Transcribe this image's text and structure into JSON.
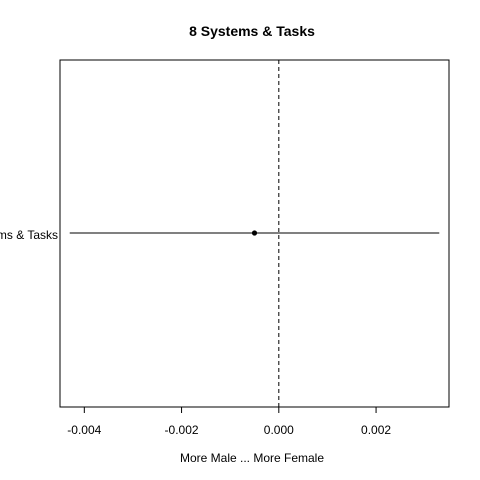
{
  "chart_data": {
    "type": "scatter",
    "title": "8 Systems & Tasks",
    "xlabel": "More Male ... More Female",
    "ylabel": "",
    "xlim": [
      -0.0045,
      0.0035
    ],
    "x_ticks": [
      -0.004,
      -0.002,
      0.0,
      0.002
    ],
    "x_tick_labels": [
      "-0.004",
      "-0.002",
      "0.000",
      "0.002"
    ],
    "reference_line": {
      "x": 0.0,
      "style": "dashed"
    },
    "categories": [
      "Systems & Tasks"
    ],
    "visible_category_label": "ms & Tasks",
    "points": [
      {
        "category": "Systems & Tasks",
        "estimate": -0.0005,
        "lower": -0.0043,
        "upper": 0.0033
      }
    ],
    "grid": false,
    "legend": "none"
  }
}
